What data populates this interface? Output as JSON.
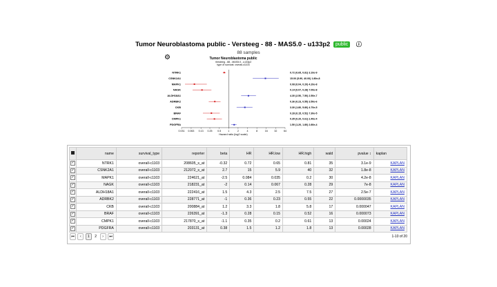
{
  "header": {
    "title": "Tumor Neuroblastoma public - Versteeg - 88 - MAS5.0 - u133p2",
    "badge": "public",
    "info_icon": "info-circle-icon",
    "subtitle": "88 samples"
  },
  "settings_icon": "gear-icon",
  "chart_data": {
    "type": "forest",
    "title": "Tumor Neuroblastoma public",
    "subtitle1": "Versteeg - 88 - MAS5.0 - u133p2",
    "subtitle2": "type of survival: overall-c1103",
    "xlabel": "Hazard ratio (log2 scale)",
    "xscale": "log2",
    "xticks": [
      "0.031",
      "0.063",
      "0.13",
      "0.25",
      "0.5",
      "1",
      "2",
      "4",
      "8",
      "16",
      "32",
      "64"
    ],
    "rows": [
      {
        "gene": "NTRK1",
        "hr": 0.72,
        "low": 0.65,
        "high": 0.81,
        "label": "0.72 (0.65, 0.81) 3.10e-9",
        "dir": "down"
      },
      {
        "gene": "CSNK2A1",
        "hr": 15.0,
        "low": 5.9,
        "high": 40.0,
        "label": "15.00 (5.90, 40.00) 1.80e-8",
        "dir": "up"
      },
      {
        "gene": "MAPK1",
        "hr": 0.08,
        "low": 0.04,
        "high": 0.2,
        "label": "0.08 (0.04, 0.20) 4.20e-8",
        "dir": "down"
      },
      {
        "gene": "NAGK",
        "hr": 0.14,
        "low": 0.07,
        "high": 0.28,
        "label": "0.14 (0.07, 0.28) 7.00e-8",
        "dir": "down"
      },
      {
        "gene": "ALDH18A1",
        "hr": 4.3,
        "low": 2.5,
        "high": 7.5,
        "label": "4.30 (2.50, 7.50) 2.50e-7",
        "dir": "up"
      },
      {
        "gene": "ADRBK2",
        "hr": 0.36,
        "low": 0.23,
        "high": 0.55,
        "label": "0.36 (0.23, 0.55) 3.50e-6",
        "dir": "down"
      },
      {
        "gene": "CKB",
        "hr": 3.3,
        "low": 1.8,
        "high": 5.8,
        "label": "3.30 (1.80, 5.80) 4.70e-5",
        "dir": "up"
      },
      {
        "gene": "BRAF",
        "hr": 0.28,
        "low": 0.15,
        "high": 0.52,
        "label": "0.28 (0.15, 0.52) 7.30e-5",
        "dir": "down"
      },
      {
        "gene": "CMPK1",
        "hr": 0.35,
        "low": 0.2,
        "high": 0.61,
        "label": "0.35 (0.20, 0.61) 2.40e-4",
        "dir": "down"
      },
      {
        "gene": "PDGFRA",
        "hr": 1.5,
        "low": 1.2,
        "high": 1.8,
        "label": "1.50 (1.20, 1.80) 2.80e-4",
        "dir": "up"
      }
    ],
    "colors": {
      "down": "#d62020",
      "up": "#3030c0"
    }
  },
  "table": {
    "columns": [
      "name",
      "survival_type",
      "reporter",
      "beta",
      "HR",
      "HR.low",
      "HR.high",
      "wald",
      "pvalue",
      "kaplan"
    ],
    "pvalue_sort": "↕",
    "rows": [
      {
        "name": "NTRK1",
        "survival_type": "overall-c1103",
        "reporter": "208605_s_at",
        "beta": "-0.32",
        "HR": "0.72",
        "HR_low": "0.65",
        "HR_high": "0.81",
        "wald": "35",
        "pvalue": "3.1e-9",
        "kaplan": "KAPLAN"
      },
      {
        "name": "CSNK2A1",
        "survival_type": "overall-c1103",
        "reporter": "212072_s_at",
        "beta": "2.7",
        "HR": "15",
        "HR_low": "5.9",
        "HR_high": "40",
        "wald": "32",
        "pvalue": "1.8e-8",
        "kaplan": "KAPLAN"
      },
      {
        "name": "MAPK1",
        "survival_type": "overall-c1103",
        "reporter": "224621_at",
        "beta": "-2.5",
        "HR": "0.084",
        "HR_low": "0.035",
        "HR_high": "0.2",
        "wald": "30",
        "pvalue": "4.2e-8",
        "kaplan": "KAPLAN"
      },
      {
        "name": "NAGK",
        "survival_type": "overall-c1103",
        "reporter": "218231_at",
        "beta": "-2",
        "HR": "0.14",
        "HR_low": "0.067",
        "HR_high": "0.28",
        "wald": "29",
        "pvalue": "7e-8",
        "kaplan": "KAPLAN"
      },
      {
        "name": "ALDH18A1",
        "survival_type": "overall-c1103",
        "reporter": "222416_at",
        "beta": "1.5",
        "HR": "4.3",
        "HR_low": "2.5",
        "HR_high": "7.5",
        "wald": "27",
        "pvalue": "2.5e-7",
        "kaplan": "KAPLAN"
      },
      {
        "name": "ADRBK2",
        "survival_type": "overall-c1103",
        "reporter": "228771_at",
        "beta": "-1",
        "HR": "0.36",
        "HR_low": "0.23",
        "HR_high": "0.55",
        "wald": "22",
        "pvalue": "0.0000035",
        "kaplan": "KAPLAN"
      },
      {
        "name": "CKB",
        "survival_type": "overall-c1103",
        "reporter": "200884_at",
        "beta": "1.2",
        "HR": "3.3",
        "HR_low": "1.8",
        "HR_high": "5.8",
        "wald": "17",
        "pvalue": "0.000047",
        "kaplan": "KAPLAN"
      },
      {
        "name": "BRAF",
        "survival_type": "overall-c1103",
        "reporter": "226391_at",
        "beta": "-1.3",
        "HR": "0.28",
        "HR_low": "0.15",
        "HR_high": "0.52",
        "wald": "16",
        "pvalue": "0.000073",
        "kaplan": "KAPLAN"
      },
      {
        "name": "CMPK1",
        "survival_type": "overall-c1103",
        "reporter": "217870_s_at",
        "beta": "-1.1",
        "HR": "0.35",
        "HR_low": "0.2",
        "HR_high": "0.61",
        "wald": "13",
        "pvalue": "0.00024",
        "kaplan": "KAPLAN"
      },
      {
        "name": "PDGFRA",
        "survival_type": "overall-c1103",
        "reporter": "203131_at",
        "beta": "0.38",
        "HR": "1.5",
        "HR_low": "1.2",
        "HR_high": "1.8",
        "wald": "13",
        "pvalue": "0.00028",
        "kaplan": "KAPLAN"
      }
    ]
  },
  "pager": {
    "first": "⏮",
    "prev": "‹",
    "pages": [
      "1",
      "2"
    ],
    "current": "1",
    "next": "›",
    "last": "⏭",
    "count_text": "1-10 of 20"
  }
}
